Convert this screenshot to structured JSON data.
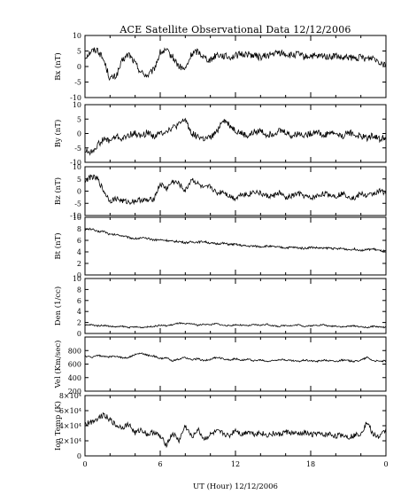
{
  "title": "ACE Satellite Observational Data   12/12/2006",
  "chart_data": {
    "type": "line",
    "title": "ACE Satellite Observational Data   12/12/2006",
    "xlabel": "UT (Hour)   12/12/2006",
    "x_ticks": [
      "0",
      "6",
      "12",
      "18",
      "0"
    ],
    "xlim": [
      0,
      24
    ],
    "grid": false,
    "panels": [
      {
        "name": "bx",
        "ylabel": "Bx (nT)",
        "ylim": [
          -10,
          10
        ],
        "y_ticks": [
          "10",
          "5",
          "0",
          "-5",
          "-10"
        ],
        "x": [
          0,
          0.5,
          1,
          1.5,
          2,
          2.5,
          3,
          3.5,
          4,
          4.5,
          5,
          5.5,
          6,
          6.5,
          7,
          7.5,
          8,
          8.5,
          9,
          9.5,
          10,
          10.5,
          11,
          11.5,
          12,
          12.5,
          13,
          13.5,
          14,
          14.5,
          15,
          15.5,
          16,
          16.5,
          17,
          17.5,
          18,
          18.5,
          19,
          19.5,
          20,
          20.5,
          21,
          21.5,
          22,
          22.5,
          23,
          23.5,
          24
        ],
        "y": [
          3,
          5,
          5.5,
          2,
          -4,
          -3,
          2,
          4,
          1,
          -2,
          -3,
          -1,
          4.5,
          5,
          3,
          0,
          -1,
          4,
          5,
          3,
          2,
          4,
          3.5,
          3,
          3.5,
          4,
          4,
          3.5,
          3,
          3.5,
          4,
          4.5,
          4,
          3.5,
          4,
          3,
          3.5,
          3,
          3.5,
          3,
          3.5,
          2.5,
          3,
          2.5,
          3,
          2.5,
          3,
          1.5,
          1
        ]
      },
      {
        "name": "by",
        "ylabel": "By (nT)",
        "ylim": [
          -10,
          10
        ],
        "y_ticks": [
          "10",
          "5",
          "0",
          "-5",
          "-10"
        ],
        "x": [
          0,
          0.5,
          1,
          1.5,
          2,
          2.5,
          3,
          3.5,
          4,
          4.5,
          5,
          5.5,
          6,
          6.5,
          7,
          7.5,
          8,
          8.5,
          9,
          9.5,
          10,
          10.5,
          11,
          11.5,
          12,
          12.5,
          13,
          13.5,
          14,
          14.5,
          15,
          15.5,
          16,
          16.5,
          17,
          17.5,
          18,
          18.5,
          19,
          19.5,
          20,
          20.5,
          21,
          21.5,
          22,
          22.5,
          23,
          23.5,
          24
        ],
        "y": [
          -6,
          -6.5,
          -4,
          -2,
          -2.5,
          -1,
          -2,
          -0.5,
          0,
          -1,
          0.5,
          -1,
          0,
          1,
          2,
          3,
          5,
          0,
          -1,
          -2,
          -1.5,
          0.5,
          5,
          3,
          1,
          0,
          -1,
          0.5,
          1,
          -0.5,
          0,
          1,
          0.5,
          -1,
          0,
          -0.5,
          0,
          1,
          -1,
          0.5,
          0,
          -1,
          0.5,
          -0.5,
          -1,
          -1.5,
          -0.5,
          -2,
          -1
        ]
      },
      {
        "name": "bz",
        "ylabel": "Bz (nT)",
        "ylim": [
          -10,
          10
        ],
        "y_ticks": [
          "10",
          "5",
          "0",
          "-5",
          "-10"
        ],
        "x": [
          0,
          0.5,
          1,
          1.5,
          2,
          2.5,
          3,
          3.5,
          4,
          4.5,
          5,
          5.5,
          6,
          6.5,
          7,
          7.5,
          8,
          8.5,
          9,
          9.5,
          10,
          10.5,
          11,
          11.5,
          12,
          12.5,
          13,
          13.5,
          14,
          14.5,
          15,
          15.5,
          16,
          16.5,
          17,
          17.5,
          18,
          18.5,
          19,
          19.5,
          20,
          20.5,
          21,
          21.5,
          22,
          22.5,
          23,
          23.5,
          24
        ],
        "y": [
          4,
          6,
          5,
          0,
          -4,
          -3,
          -4,
          -4.5,
          -4,
          -3.5,
          -4,
          -3,
          3,
          1,
          4,
          3,
          0,
          5,
          3,
          1,
          2,
          -1,
          0,
          -2,
          -3,
          -1,
          -1.5,
          0,
          -1,
          -2,
          -2,
          -0.5,
          -3,
          -2,
          -1,
          -2,
          -3,
          -2,
          -1,
          -1.5,
          -2,
          -1,
          -2,
          -3,
          -1,
          -2,
          -1,
          0,
          -0.5
        ]
      },
      {
        "name": "bt",
        "ylabel": "Bt (nT)",
        "ylim": [
          0,
          10
        ],
        "y_ticks": [
          "10",
          "8",
          "6",
          "4",
          "2",
          "0"
        ],
        "x": [
          0,
          0.5,
          1,
          1.5,
          2,
          2.5,
          3,
          3.5,
          4,
          4.5,
          5,
          5.5,
          6,
          6.5,
          7,
          7.5,
          8,
          8.5,
          9,
          9.5,
          10,
          10.5,
          11,
          11.5,
          12,
          12.5,
          13,
          13.5,
          14,
          14.5,
          15,
          15.5,
          16,
          16.5,
          17,
          17.5,
          18,
          18.5,
          19,
          19.5,
          20,
          20.5,
          21,
          21.5,
          22,
          22.5,
          23,
          23.5,
          24
        ],
        "y": [
          7.8,
          8,
          7.5,
          7.6,
          7,
          7,
          6.8,
          6.5,
          6.3,
          6.4,
          6.3,
          6.1,
          6.1,
          6,
          5.8,
          5.8,
          5.6,
          5.7,
          5.7,
          5.8,
          5.5,
          5.4,
          5.5,
          5.3,
          5.3,
          5.1,
          5,
          5,
          4.9,
          5,
          4.9,
          4.8,
          4.7,
          4.8,
          4.7,
          4.6,
          4.8,
          4.7,
          4.6,
          4.7,
          4.5,
          4.6,
          4.4,
          4.5,
          4.3,
          4.4,
          4.5,
          4.2,
          4.1
        ]
      },
      {
        "name": "den",
        "ylabel": "Den (1/cc)",
        "ylim": [
          0,
          10
        ],
        "y_ticks": [
          "10",
          "8",
          "6",
          "4",
          "2",
          "0"
        ],
        "x": [
          0,
          0.5,
          1,
          1.5,
          2,
          2.5,
          3,
          3.5,
          4,
          4.5,
          5,
          5.5,
          6,
          6.5,
          7,
          7.5,
          8,
          8.5,
          9,
          9.5,
          10,
          10.5,
          11,
          11.5,
          12,
          12.5,
          13,
          13.5,
          14,
          14.5,
          15,
          15.5,
          16,
          16.5,
          17,
          17.5,
          18,
          18.5,
          19,
          19.5,
          20,
          20.5,
          21,
          21.5,
          22,
          22.5,
          23,
          23.5,
          24
        ],
        "y": [
          1.5,
          1.6,
          1.4,
          1.5,
          1.3,
          1.2,
          1.3,
          1.1,
          1.2,
          1.1,
          1.2,
          1.3,
          1.5,
          1.4,
          1.6,
          1.9,
          1.7,
          1.8,
          1.5,
          1.7,
          1.6,
          1.8,
          1.5,
          1.4,
          1.6,
          1.5,
          1.4,
          1.6,
          1.5,
          1.7,
          1.4,
          1.3,
          1.5,
          1.4,
          1.6,
          1.3,
          1.4,
          1.5,
          1.6,
          1.3,
          1.4,
          1.2,
          1.3,
          1.4,
          1.2,
          1.1,
          1.3,
          1.2,
          1.1
        ]
      },
      {
        "name": "vel",
        "ylabel": "Vel (Km/sec)",
        "ylim": [
          200,
          1000
        ],
        "y_ticks": [
          "800",
          "600",
          "400",
          "200"
        ],
        "x": [
          0,
          0.5,
          1,
          1.5,
          2,
          2.5,
          3,
          3.5,
          4,
          4.5,
          5,
          5.5,
          6,
          6.5,
          7,
          7.5,
          8,
          8.5,
          9,
          9.5,
          10,
          10.5,
          11,
          11.5,
          12,
          12.5,
          13,
          13.5,
          14,
          14.5,
          15,
          15.5,
          16,
          16.5,
          17,
          17.5,
          18,
          18.5,
          19,
          19.5,
          20,
          20.5,
          21,
          21.5,
          22,
          22.5,
          23,
          23.5,
          24
        ],
        "y": [
          720,
          700,
          730,
          710,
          705,
          720,
          690,
          700,
          740,
          760,
          730,
          720,
          680,
          690,
          650,
          670,
          700,
          660,
          680,
          650,
          670,
          700,
          680,
          660,
          680,
          660,
          670,
          650,
          660,
          640,
          650,
          670,
          660,
          650,
          640,
          660,
          650,
          640,
          660,
          650,
          640,
          660,
          650,
          640,
          660,
          700,
          650,
          640,
          650
        ]
      },
      {
        "name": "temp",
        "ylabel": "Ion Temp (K)",
        "ylim": [
          0,
          80000
        ],
        "y_ticks": [
          "8×10⁴",
          "6×10⁴",
          "4×10⁴",
          "2×10⁴",
          "0"
        ],
        "x": [
          0,
          0.5,
          1,
          1.5,
          2,
          2.5,
          3,
          3.5,
          4,
          4.5,
          5,
          5.5,
          6,
          6.5,
          7,
          7.5,
          8,
          8.5,
          9,
          9.5,
          10,
          10.5,
          11,
          11.5,
          12,
          12.5,
          13,
          13.5,
          14,
          14.5,
          15,
          15.5,
          16,
          16.5,
          17,
          17.5,
          18,
          18.5,
          19,
          19.5,
          20,
          20.5,
          21,
          21.5,
          22,
          22.5,
          23,
          23.5,
          24
        ],
        "y": [
          42000,
          45000,
          50000,
          55000,
          48000,
          40000,
          38000,
          42000,
          30000,
          35000,
          28000,
          32000,
          25000,
          15000,
          30000,
          20000,
          40000,
          25000,
          35000,
          22000,
          28000,
          32000,
          30000,
          26000,
          35000,
          28000,
          33000,
          29000,
          31000,
          27000,
          30000,
          28000,
          32000,
          30000,
          29000,
          31000,
          28000,
          30000,
          27000,
          29000,
          26000,
          28000,
          25000,
          27000,
          30000,
          45000,
          28000,
          25000,
          35000
        ]
      }
    ]
  }
}
